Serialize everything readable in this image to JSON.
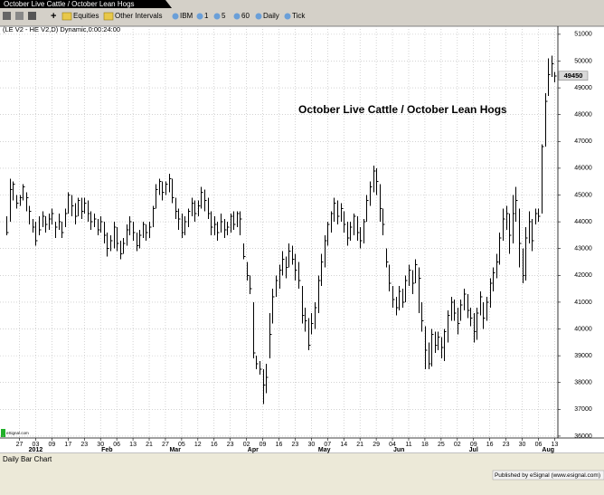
{
  "window": {
    "tab": "October Live Cattle / October Lean Hogs",
    "toolbar": [
      "Equities",
      "Other Intervals",
      "IBM",
      "1",
      "5",
      "60",
      "Daily",
      "Tick"
    ],
    "footer": "Daily Bar Chart",
    "publisher": "Published by eSignal (www.esignal.com)"
  },
  "chart_data": {
    "type": "ohlc",
    "symbol_label": "(LE V2 - HE V2,D) Dynamic,0:00:24:00",
    "title": "October Live Cattle / October Lean Hogs",
    "watermark": "eSignal.com",
    "color": "#000000",
    "grid": true,
    "ylim": [
      35930,
      51300
    ],
    "yticks": [
      36000,
      37000,
      38000,
      39000,
      40000,
      41000,
      42000,
      43000,
      44000,
      45000,
      46000,
      47000,
      48000,
      49000,
      50000,
      51000
    ],
    "xlim": [
      -2,
      170
    ],
    "xticks": [
      {
        "value": 4,
        "label": "27"
      },
      {
        "value": 9,
        "label": "03"
      },
      {
        "value": 14,
        "label": "09"
      },
      {
        "value": 19,
        "label": "17"
      },
      {
        "value": 24,
        "label": "23"
      },
      {
        "value": 29,
        "label": "30"
      },
      {
        "value": 34,
        "label": "06"
      },
      {
        "value": 39,
        "label": "13"
      },
      {
        "value": 44,
        "label": "21"
      },
      {
        "value": 49,
        "label": "27"
      },
      {
        "value": 54,
        "label": "05"
      },
      {
        "value": 59,
        "label": "12"
      },
      {
        "value": 64,
        "label": "16"
      },
      {
        "value": 69,
        "label": "23"
      },
      {
        "value": 74,
        "label": "02"
      },
      {
        "value": 79,
        "label": "09"
      },
      {
        "value": 84,
        "label": "16"
      },
      {
        "value": 89,
        "label": "23"
      },
      {
        "value": 94,
        "label": "30"
      },
      {
        "value": 99,
        "label": "07"
      },
      {
        "value": 104,
        "label": "14"
      },
      {
        "value": 109,
        "label": "21"
      },
      {
        "value": 114,
        "label": "29"
      },
      {
        "value": 119,
        "label": "04"
      },
      {
        "value": 124,
        "label": "11"
      },
      {
        "value": 129,
        "label": "18"
      },
      {
        "value": 134,
        "label": "25"
      },
      {
        "value": 139,
        "label": "02"
      },
      {
        "value": 144,
        "label": "09"
      },
      {
        "value": 149,
        "label": "16"
      },
      {
        "value": 154,
        "label": "23"
      },
      {
        "value": 159,
        "label": "30"
      },
      {
        "value": 164,
        "label": "06"
      },
      {
        "value": 169,
        "label": "13"
      }
    ],
    "month_labels": [
      {
        "value": 9,
        "label": "2012"
      },
      {
        "value": 31,
        "label": "Feb"
      },
      {
        "value": 52,
        "label": "Mar"
      },
      {
        "value": 76,
        "label": "Apr"
      },
      {
        "value": 98,
        "label": "May"
      },
      {
        "value": 121,
        "label": "Jun"
      },
      {
        "value": 144,
        "label": "Jul"
      },
      {
        "value": 167,
        "label": "Aug"
      }
    ],
    "bars": [
      [
        44200,
        43500,
        43600
      ],
      [
        45600,
        44000,
        45200
      ],
      [
        45500,
        44800,
        45400
      ],
      [
        45000,
        44500,
        44700
      ],
      [
        45000,
        44600,
        44900
      ],
      [
        45400,
        44800,
        45300
      ],
      [
        45100,
        44400,
        44900
      ],
      [
        44600,
        43900,
        44400
      ],
      [
        44100,
        43600,
        43800
      ],
      [
        44000,
        43100,
        43300
      ],
      [
        44200,
        43500,
        43700
      ],
      [
        44400,
        43800,
        44200
      ],
      [
        44200,
        43600,
        43900
      ],
      [
        44300,
        43700,
        44100
      ],
      [
        44500,
        43900,
        44300
      ],
      [
        44000,
        43400,
        43800
      ],
      [
        44300,
        43700,
        44000
      ],
      [
        44000,
        43400,
        43600
      ],
      [
        44500,
        43800,
        44300
      ],
      [
        45100,
        44300,
        45000
      ],
      [
        45000,
        44200,
        44600
      ],
      [
        44700,
        43900,
        44200
      ],
      [
        44900,
        44200,
        44800
      ],
      [
        44900,
        44100,
        44400
      ],
      [
        44900,
        44300,
        44700
      ],
      [
        44800,
        44000,
        44300
      ],
      [
        44400,
        43700,
        44000
      ],
      [
        44300,
        43800,
        44100
      ],
      [
        44100,
        43500,
        43700
      ],
      [
        44200,
        43600,
        44000
      ],
      [
        44000,
        43200,
        43500
      ],
      [
        43600,
        42700,
        43000
      ],
      [
        43500,
        42900,
        43300
      ],
      [
        44000,
        43000,
        43800
      ],
      [
        43800,
        42900,
        43200
      ],
      [
        43300,
        42600,
        42800
      ],
      [
        43400,
        42800,
        43200
      ],
      [
        43900,
        43100,
        43700
      ],
      [
        44200,
        43500,
        44000
      ],
      [
        44000,
        43300,
        43600
      ],
      [
        43600,
        42900,
        43100
      ],
      [
        43700,
        43000,
        43500
      ],
      [
        44000,
        43400,
        43900
      ],
      [
        43900,
        43300,
        43600
      ],
      [
        44000,
        43400,
        43800
      ],
      [
        44600,
        43800,
        44500
      ],
      [
        45400,
        44500,
        45200
      ],
      [
        45600,
        45000,
        45500
      ],
      [
        45500,
        44800,
        45100
      ],
      [
        45500,
        45000,
        45400
      ],
      [
        45800,
        45100,
        45600
      ],
      [
        45600,
        44700,
        44900
      ],
      [
        44900,
        44100,
        44400
      ],
      [
        44500,
        43700,
        44100
      ],
      [
        44300,
        43400,
        43600
      ],
      [
        44200,
        43500,
        44000
      ],
      [
        44500,
        43800,
        44400
      ],
      [
        44900,
        44200,
        44700
      ],
      [
        44800,
        44000,
        44300
      ],
      [
        44800,
        44200,
        44600
      ],
      [
        45300,
        44500,
        45100
      ],
      [
        45200,
        44400,
        44800
      ],
      [
        44900,
        44100,
        44300
      ],
      [
        44400,
        43500,
        43800
      ],
      [
        44200,
        43500,
        43900
      ],
      [
        44000,
        43300,
        43600
      ],
      [
        44300,
        43600,
        44000
      ],
      [
        44100,
        43400,
        43700
      ],
      [
        44000,
        43500,
        43800
      ],
      [
        44300,
        43600,
        44200
      ],
      [
        44400,
        43700,
        43900
      ],
      [
        44400,
        43800,
        44300
      ],
      [
        44400,
        43500,
        44100
      ],
      [
        43200,
        42600,
        42700
      ],
      [
        42500,
        41800,
        42000
      ],
      [
        42000,
        41300,
        41500
      ],
      [
        41000,
        38900,
        39100
      ],
      [
        39000,
        38500,
        38700
      ],
      [
        38800,
        38300,
        38500
      ],
      [
        38500,
        37200,
        37900
      ],
      [
        38700,
        37600,
        38200
      ],
      [
        40600,
        38900,
        39800
      ],
      [
        41500,
        40200,
        41200
      ],
      [
        42000,
        41200,
        41800
      ],
      [
        42400,
        41500,
        42200
      ],
      [
        42900,
        42000,
        42600
      ],
      [
        42700,
        41900,
        42300
      ],
      [
        43200,
        42300,
        42900
      ],
      [
        43100,
        42400,
        42600
      ],
      [
        42800,
        41800,
        42200
      ],
      [
        42500,
        41500,
        41800
      ],
      [
        41600,
        40200,
        40500
      ],
      [
        40800,
        39900,
        40300
      ],
      [
        40400,
        39200,
        39400
      ],
      [
        40600,
        39800,
        40200
      ],
      [
        41000,
        40000,
        40800
      ],
      [
        42000,
        40600,
        41800
      ],
      [
        42800,
        41600,
        42500
      ],
      [
        43500,
        42300,
        43300
      ],
      [
        44000,
        43100,
        43900
      ],
      [
        44400,
        43600,
        44300
      ],
      [
        44900,
        44000,
        44700
      ],
      [
        44800,
        43900,
        44200
      ],
      [
        44700,
        44000,
        44500
      ],
      [
        44400,
        43600,
        43900
      ],
      [
        44000,
        43100,
        43400
      ],
      [
        44000,
        43300,
        43800
      ],
      [
        44300,
        43500,
        44200
      ],
      [
        44200,
        43300,
        43600
      ],
      [
        43800,
        43000,
        43300
      ],
      [
        44100,
        43200,
        44000
      ],
      [
        45000,
        44000,
        44800
      ],
      [
        45500,
        44600,
        45300
      ],
      [
        46100,
        45100,
        45900
      ],
      [
        46000,
        45000,
        45500
      ],
      [
        45400,
        44000,
        44500
      ],
      [
        44500,
        43500,
        43900
      ],
      [
        43000,
        42300,
        42500
      ],
      [
        42400,
        41400,
        41700
      ],
      [
        41600,
        40800,
        41100
      ],
      [
        41200,
        40500,
        40800
      ],
      [
        41600,
        40700,
        41400
      ],
      [
        41500,
        40800,
        41000
      ],
      [
        42000,
        41000,
        41800
      ],
      [
        42400,
        41600,
        42200
      ],
      [
        42200,
        41300,
        41700
      ],
      [
        42600,
        41700,
        42400
      ],
      [
        42300,
        40600,
        41900
      ],
      [
        41000,
        39900,
        40300
      ],
      [
        40100,
        38500,
        39200
      ],
      [
        39500,
        38500,
        38700
      ],
      [
        40000,
        38600,
        39800
      ],
      [
        39900,
        39100,
        39400
      ],
      [
        39900,
        39200,
        39700
      ],
      [
        39700,
        38900,
        39300
      ],
      [
        40000,
        38800,
        39900
      ],
      [
        40700,
        39500,
        40500
      ],
      [
        41200,
        40300,
        41000
      ],
      [
        41100,
        40300,
        40600
      ],
      [
        40800,
        39800,
        40200
      ],
      [
        41100,
        40300,
        40900
      ],
      [
        41500,
        40700,
        41300
      ],
      [
        41300,
        40400,
        40700
      ],
      [
        40800,
        40100,
        40400
      ],
      [
        40600,
        39500,
        39900
      ],
      [
        40800,
        39600,
        40600
      ],
      [
        41400,
        40500,
        41200
      ],
      [
        41000,
        40000,
        40400
      ],
      [
        41200,
        40300,
        41000
      ],
      [
        41900,
        40800,
        41700
      ],
      [
        42300,
        41400,
        42100
      ],
      [
        42800,
        41900,
        42500
      ],
      [
        43600,
        42400,
        43400
      ],
      [
        44500,
        43300,
        44100
      ],
      [
        44600,
        43700,
        44300
      ],
      [
        44300,
        42800,
        43500
      ],
      [
        45000,
        43200,
        44300
      ],
      [
        45300,
        44000,
        44800
      ],
      [
        44500,
        42300,
        43200
      ],
      [
        43000,
        41700,
        42000
      ],
      [
        43800,
        41800,
        43400
      ],
      [
        44400,
        43200,
        44000
      ],
      [
        44100,
        42900,
        43300
      ],
      [
        44500,
        43900,
        44300
      ],
      [
        44500,
        44000,
        44200
      ],
      [
        46900,
        44300,
        46800
      ],
      [
        48800,
        46800,
        48500
      ],
      [
        50100,
        48700,
        49500
      ],
      [
        50200,
        49400,
        49900
      ],
      [
        49600,
        49200,
        49450
      ]
    ]
  }
}
